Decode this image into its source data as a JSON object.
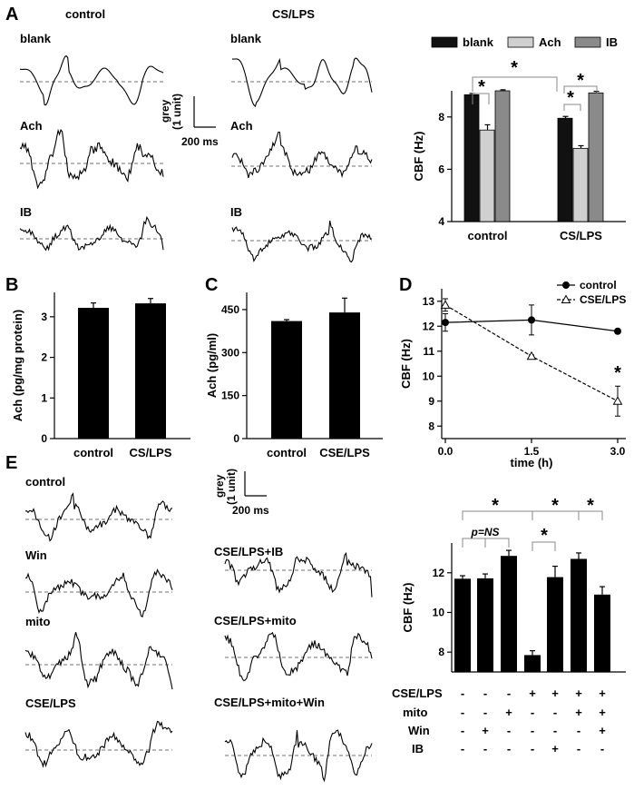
{
  "panels": {
    "A": {
      "letter": "A",
      "control_title": "control",
      "cslps_title": "CS/LPS",
      "trace_labels": [
        "blank",
        "Ach",
        "IB"
      ],
      "scale": {
        "unit_label": "grey",
        "unit_value": "(1 unit)",
        "time": "200 ms"
      },
      "chart_data": {
        "type": "bar",
        "title": "",
        "ylabel": "CBF (Hz)",
        "ylim": [
          4,
          9
        ],
        "yticks": [
          4,
          6,
          8
        ],
        "categories": [
          "control",
          "CS/LPS"
        ],
        "series": [
          {
            "name": "blank",
            "color": "#111111",
            "values": [
              8.85,
              7.95
            ],
            "errors": [
              0.05,
              0.07
            ]
          },
          {
            "name": "Ach",
            "color": "#d0d0d0",
            "values": [
              7.5,
              6.8
            ],
            "errors": [
              0.2,
              0.1
            ]
          },
          {
            "name": "IB",
            "color": "#8a8a8a",
            "values": [
              9.0,
              8.92
            ],
            "errors": [
              0.04,
              0.06
            ]
          }
        ],
        "significance": [
          "*",
          "*",
          "*",
          "*"
        ]
      }
    },
    "B": {
      "letter": "B",
      "chart_data": {
        "type": "bar",
        "ylabel": "Ach (pg/mg protein)",
        "ylim": [
          0,
          3.6
        ],
        "yticks": [
          0,
          1,
          2,
          3
        ],
        "categories": [
          "control",
          "CS/LPS"
        ],
        "values": [
          3.22,
          3.33
        ],
        "errors": [
          0.12,
          0.12
        ]
      }
    },
    "C": {
      "letter": "C",
      "chart_data": {
        "type": "bar",
        "ylabel": "Ach (pg/ml)",
        "ylim": [
          0,
          510
        ],
        "yticks": [
          0,
          150,
          300,
          450
        ],
        "categories": [
          "control",
          "CSE/LPS"
        ],
        "values": [
          410,
          440
        ],
        "errors": [
          5,
          50
        ]
      }
    },
    "D": {
      "letter": "D",
      "chart_data": {
        "type": "line",
        "xlabel": "time (h)",
        "ylabel": "CBF (Hz)",
        "xlim": [
          0,
          3
        ],
        "ylim": [
          7.5,
          13.5
        ],
        "xticks": [
          "0.0",
          "1.5",
          "3.0"
        ],
        "yticks": [
          8,
          9,
          10,
          11,
          12,
          13
        ],
        "series": [
          {
            "name": "control",
            "marker": "circle",
            "x": [
              0,
              1.5,
              3
            ],
            "y": [
              12.15,
              12.25,
              11.8
            ],
            "errors": [
              0.35,
              0.6,
              0.05
            ]
          },
          {
            "name": "CSE/LPS",
            "marker": "triangle",
            "x": [
              0,
              1.5,
              3
            ],
            "y": [
              12.85,
              10.8,
              9.0
            ],
            "errors": [
              0.25,
              0.05,
              0.6
            ]
          }
        ],
        "annotations": [
          "*"
        ]
      }
    },
    "E": {
      "letter": "E",
      "trace_labels_left": [
        "control",
        "Win",
        "mito",
        "CSE/LPS"
      ],
      "trace_labels_right": [
        "CSE/LPS+IB",
        "CSE/LPS+mito",
        "CSE/LPS+mito+Win"
      ],
      "scale": {
        "unit_label": "grey",
        "unit_value": "(1 unit)",
        "time": "200 ms"
      },
      "chart_data": {
        "type": "bar",
        "ylabel": "CBF (Hz)",
        "ylim": [
          7,
          13.5
        ],
        "yticks": [
          8,
          10,
          12
        ],
        "values": [
          11.7,
          11.72,
          12.85,
          7.85,
          11.78,
          12.7,
          10.9
        ],
        "errors": [
          0.15,
          0.22,
          0.28,
          0.22,
          0.55,
          0.3,
          0.4
        ],
        "significance": [
          "*",
          "p=NS",
          "*",
          "*",
          "*"
        ],
        "conditions": [
          {
            "name": "CSE/LPS",
            "marks": [
              "-",
              "-",
              "-",
              "+",
              "+",
              "+",
              "+"
            ]
          },
          {
            "name": "mito",
            "marks": [
              "-",
              "-",
              "+",
              "-",
              "-",
              "+",
              "+"
            ]
          },
          {
            "name": "Win",
            "marks": [
              "-",
              "+",
              "-",
              "-",
              "-",
              "-",
              "+"
            ]
          },
          {
            "name": "IB",
            "marks": [
              "-",
              "-",
              "-",
              "-",
              "+",
              "-",
              "-"
            ]
          }
        ]
      }
    }
  }
}
